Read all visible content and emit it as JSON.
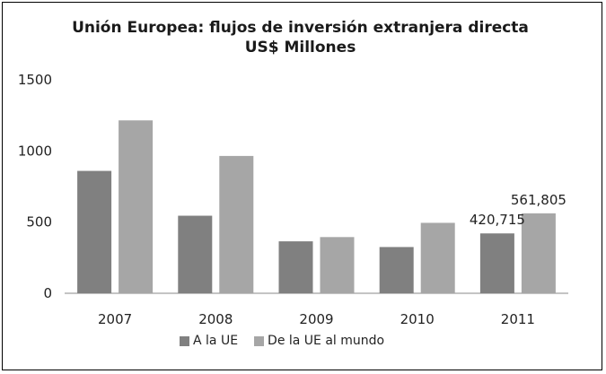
{
  "chart_data": {
    "type": "bar",
    "title": "Unión Europea: flujos de inversión extranjera directa",
    "subtitle": "US$ Millones",
    "categories": [
      "2007",
      "2008",
      "2009",
      "2010",
      "2011"
    ],
    "series": [
      {
        "name": "A la UE",
        "values": [
          860,
          545,
          365,
          325,
          420.715
        ],
        "color": "#808080"
      },
      {
        "name": "De la UE al mundo",
        "values": [
          1215,
          965,
          395,
          495,
          561.805
        ],
        "color": "#a6a6a6"
      }
    ],
    "data_labels": [
      {
        "series": 0,
        "index": 4,
        "text": "420,715"
      },
      {
        "series": 1,
        "index": 4,
        "text": "561,805"
      }
    ],
    "yticks": [
      "0",
      "500",
      "1000",
      "1500"
    ],
    "ylim": [
      0,
      1500
    ],
    "grid": false,
    "legend_position": "bottom"
  }
}
